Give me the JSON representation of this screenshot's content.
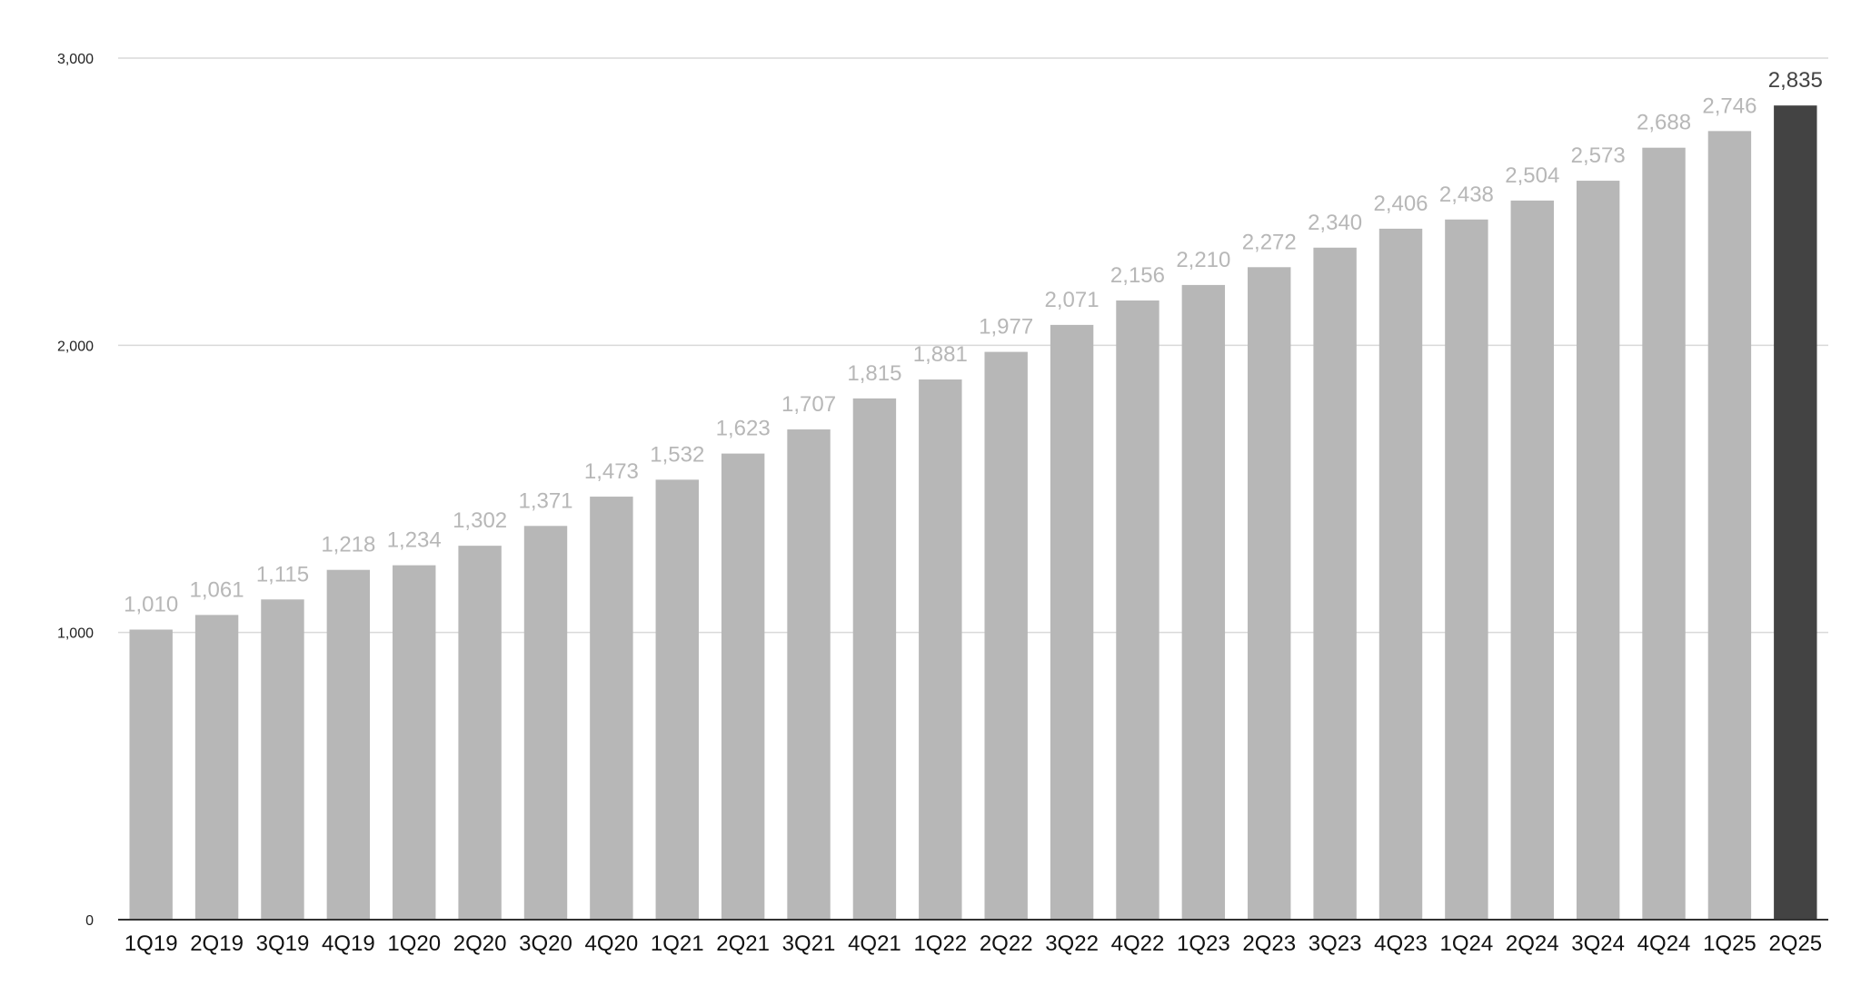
{
  "chart_data": {
    "type": "bar",
    "title": "",
    "xlabel": "",
    "ylabel": "",
    "ylim": [
      0,
      3000
    ],
    "yticks": [
      0,
      1000,
      2000,
      3000
    ],
    "ytick_labels": [
      "0",
      "1,000",
      "2,000",
      "3,000"
    ],
    "grid": true,
    "legend": "none",
    "categories": [
      "1Q19",
      "2Q19",
      "3Q19",
      "4Q19",
      "1Q20",
      "2Q20",
      "3Q20",
      "4Q20",
      "1Q21",
      "2Q21",
      "3Q21",
      "4Q21",
      "1Q22",
      "2Q22",
      "3Q22",
      "4Q22",
      "1Q23",
      "2Q23",
      "3Q23",
      "4Q23",
      "1Q24",
      "2Q24",
      "3Q24",
      "4Q24",
      "1Q25",
      "2Q25"
    ],
    "values": [
      1010,
      1061,
      1115,
      1218,
      1234,
      1302,
      1371,
      1473,
      1532,
      1623,
      1707,
      1815,
      1881,
      1977,
      2071,
      2156,
      2210,
      2272,
      2340,
      2406,
      2438,
      2504,
      2573,
      2688,
      2746,
      2835
    ],
    "data_labels": [
      "1,010",
      "1,061",
      "1,115",
      "1,218",
      "1,234",
      "1,302",
      "1,371",
      "1,473",
      "1,532",
      "1,623",
      "1,707",
      "1,815",
      "1,881",
      "1,977",
      "2,071",
      "2,156",
      "2,210",
      "2,272",
      "2,340",
      "2,406",
      "2,438",
      "2,504",
      "2,573",
      "2,688",
      "2,746",
      "2,835"
    ],
    "colors": {
      "bar": "#b7b7b7",
      "highlight_bar": "#434343",
      "label": "#b7b7b7",
      "highlight_label": "#434343"
    },
    "highlight_index": 25
  }
}
